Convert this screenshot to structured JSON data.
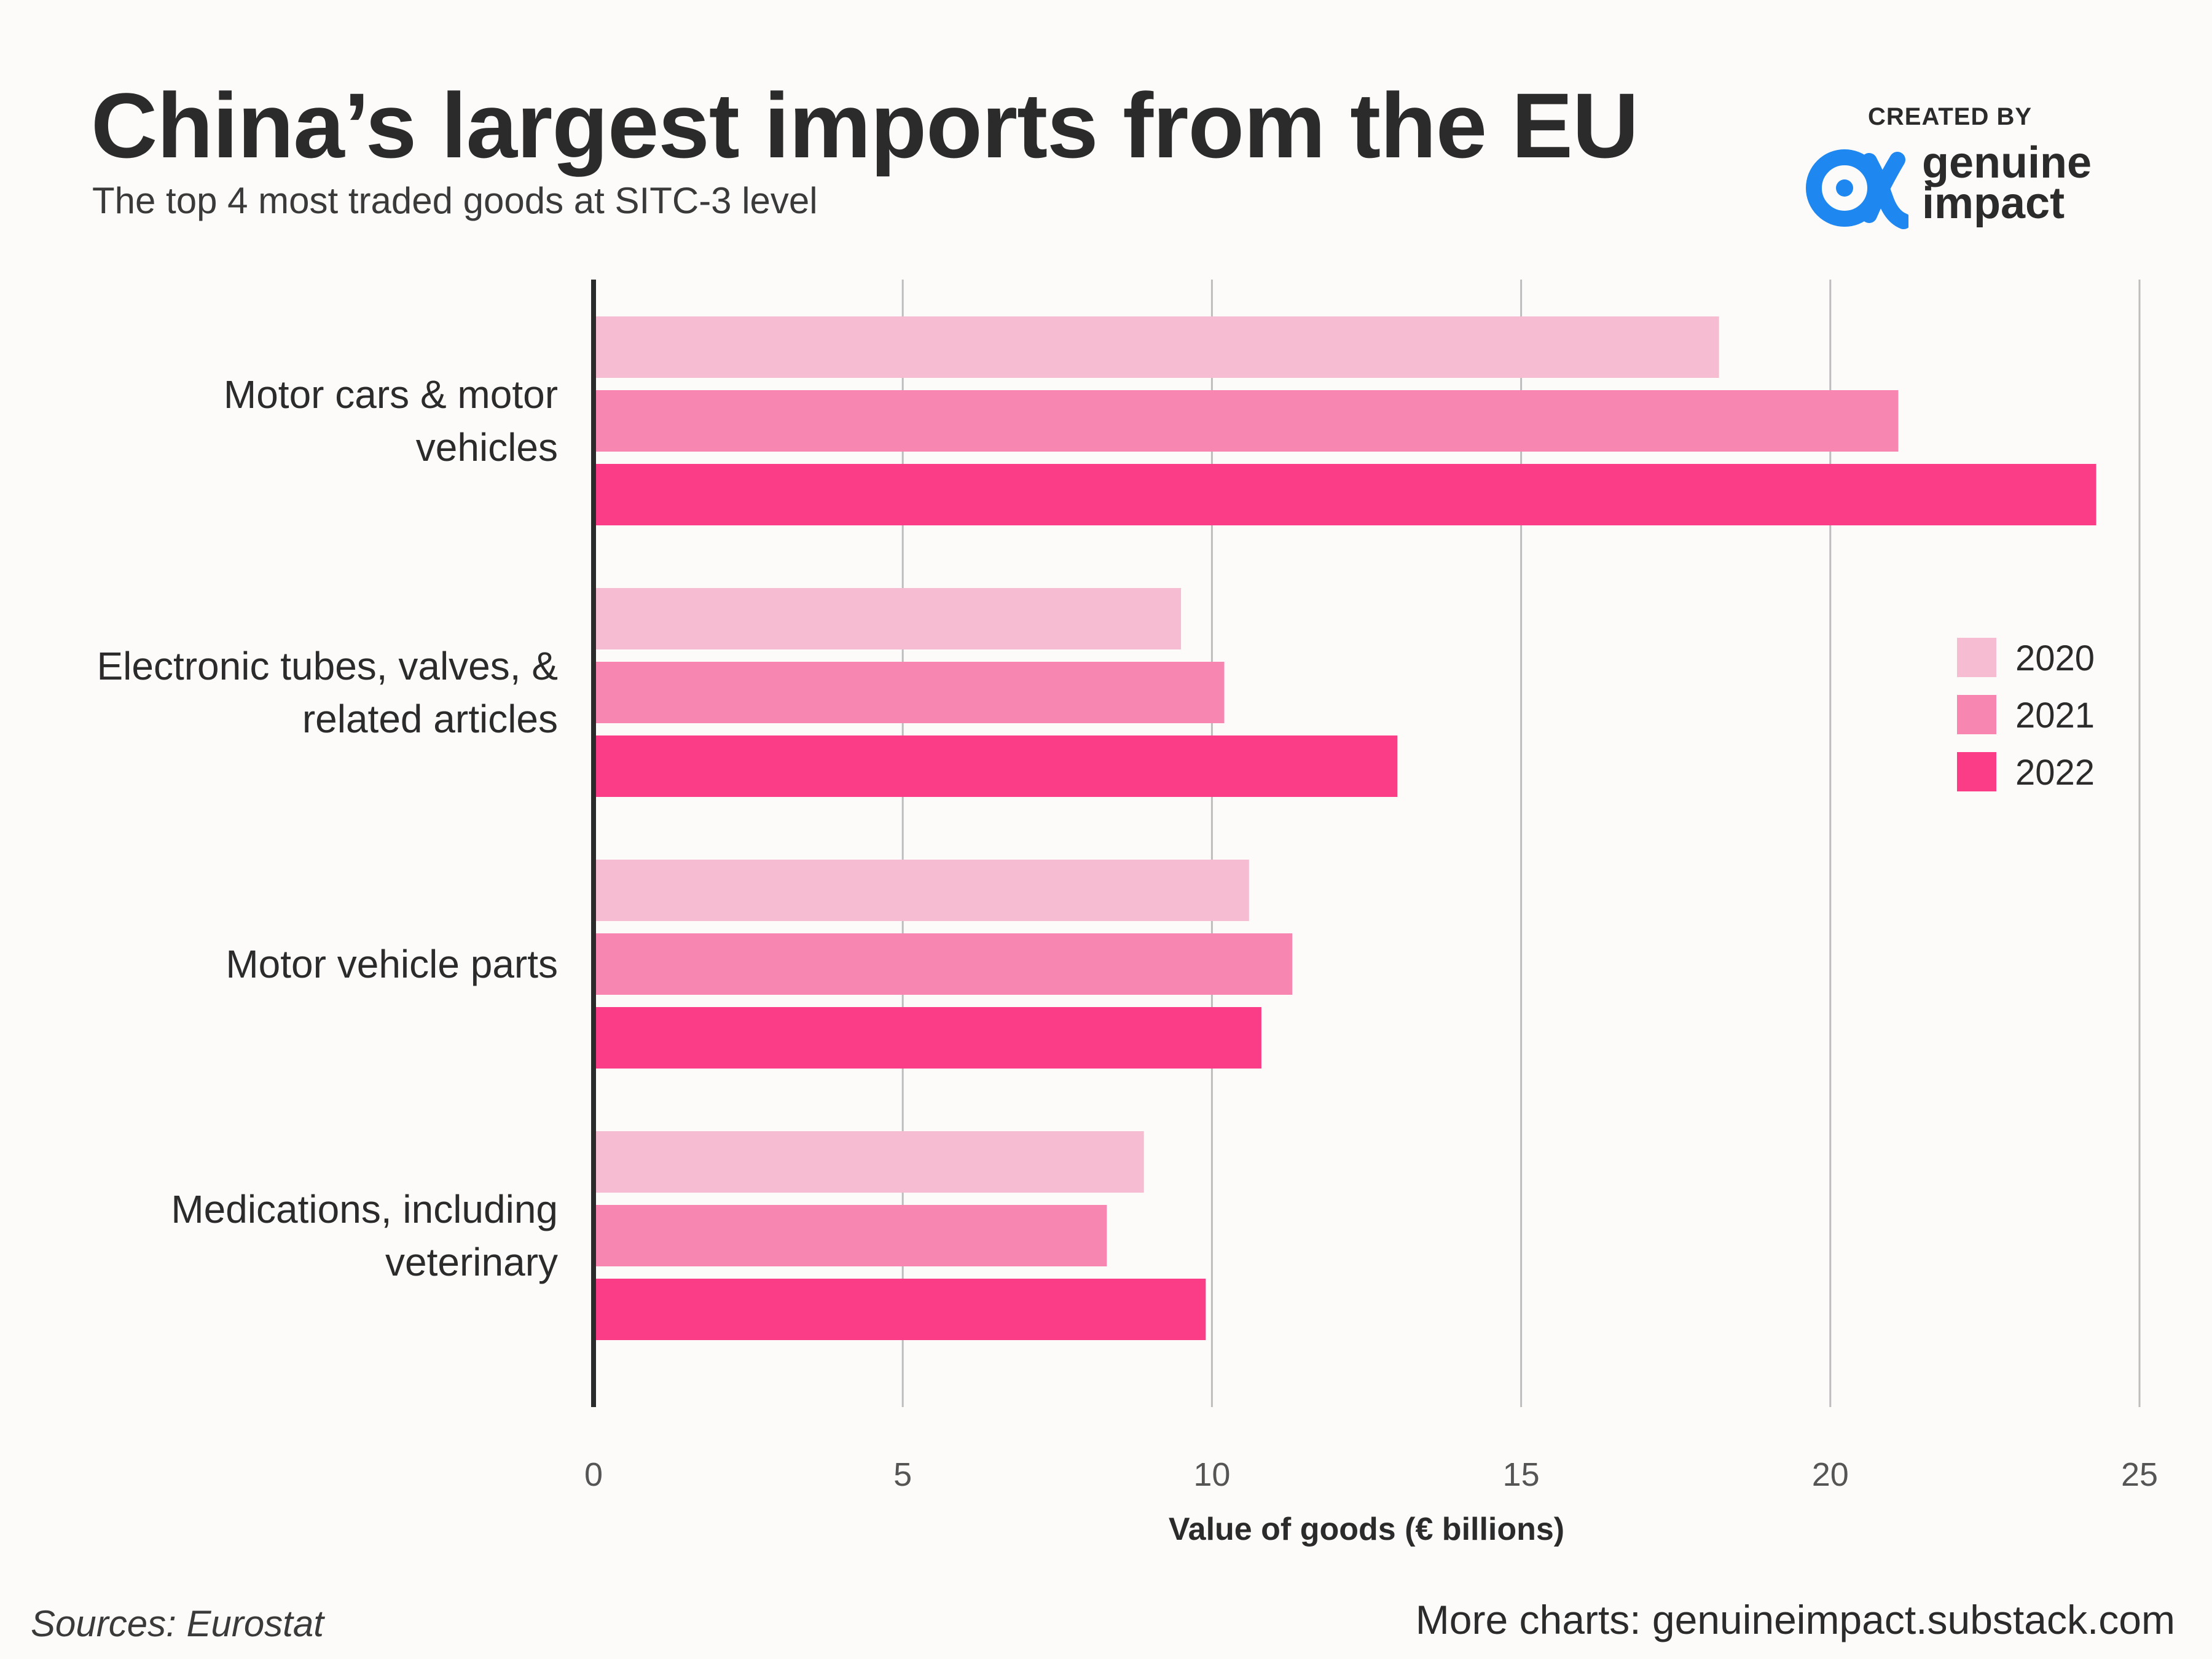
{
  "header": {
    "title": "China’s largest imports from the EU",
    "subtitle": "The top 4 most traded goods at SITC-3 level"
  },
  "branding": {
    "created_by": "CREATED BY",
    "logo_line1": "genuine",
    "logo_line2": "impact",
    "logo_color": "#1e88f0"
  },
  "footer": {
    "source": "Sources: Eurostat",
    "more_charts": "More charts: genuineimpact.substack.com"
  },
  "chart_data": {
    "type": "bar",
    "orientation": "horizontal",
    "categories": [
      [
        "Motor cars & motor",
        "vehicles"
      ],
      [
        "Electronic tubes, valves, &",
        "related articles"
      ],
      [
        "Motor vehicle parts"
      ],
      [
        "Medications, including",
        "veterinary"
      ]
    ],
    "series": [
      {
        "name": "2020",
        "color": "#f5bcd2",
        "values": [
          18.2,
          9.5,
          10.6,
          8.9
        ]
      },
      {
        "name": "2021",
        "color": "#f786b0",
        "values": [
          21.1,
          10.2,
          11.3,
          8.3
        ]
      },
      {
        "name": "2022",
        "color": "#fb3d87",
        "values": [
          24.3,
          13.0,
          10.8,
          9.9
        ]
      }
    ],
    "xlabel": "Value of goods (€ billions)",
    "xlim": [
      0,
      25
    ],
    "xticks": [
      0,
      5,
      10,
      15,
      20,
      25
    ],
    "grid": "vertical",
    "legend_position": "right"
  }
}
